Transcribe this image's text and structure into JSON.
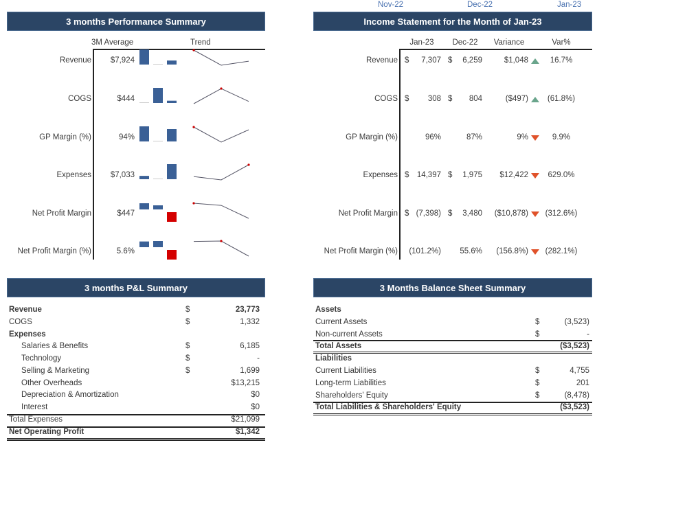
{
  "top_months": [
    "Nov-22",
    "Dec-22",
    "Jan-23"
  ],
  "performance": {
    "title": "3 months Performance Summary",
    "col_avg": "3M Average",
    "col_trend": "Trend",
    "bar_color": "#3a6096",
    "negative_color": "#d40000",
    "rows": [
      {
        "label": "Revenue",
        "avg": "$7,924",
        "trend": [
          10207,
          6259,
          7307
        ],
        "marker": 0
      },
      {
        "label": "COGS",
        "avg": "$444",
        "trend": [
          220,
          804,
          308
        ],
        "marker": 1
      },
      {
        "label": "GP Margin (%)",
        "avg": "94%",
        "trend": [
          98,
          87,
          96
        ],
        "marker": 0
      },
      {
        "label": "Expenses",
        "avg": "$7,033",
        "trend": [
          4727,
          1975,
          14397
        ],
        "marker": 2
      },
      {
        "label": "Net Profit Margin",
        "avg": "$447",
        "trend": [
          5260,
          3480,
          -7398
        ],
        "marker": 0
      },
      {
        "label": "Net Profit Margin (%)",
        "avg": "5.6%",
        "trend": [
          51.5,
          55.6,
          -101.2
        ],
        "marker": 1
      }
    ]
  },
  "income": {
    "title": "Income Statement for the Month of Jan-23",
    "columns": [
      "Jan-23",
      "Dec-22",
      "Variance",
      "Var%"
    ],
    "up_color": "#6aa58c",
    "down_color": "#e0522a",
    "rows": [
      {
        "label": "Revenue",
        "cur_sym": "$",
        "cur": "7,307",
        "prev_sym": "$",
        "prev": "6,259",
        "variance": "$1,048",
        "arrow": "up",
        "varpct": "16.7%"
      },
      {
        "label": "COGS",
        "cur_sym": "$",
        "cur": "308",
        "prev_sym": "$",
        "prev": "804",
        "variance": "($497)",
        "arrow": "up",
        "varpct": "(61.8%)"
      },
      {
        "label": "GP Margin (%)",
        "cur_sym": "",
        "cur": "96%",
        "prev_sym": "",
        "prev": "87%",
        "variance": "9%",
        "arrow": "down",
        "varpct": "9.9%"
      },
      {
        "label": "Expenses",
        "cur_sym": "$",
        "cur": "14,397",
        "prev_sym": "$",
        "prev": "1,975",
        "variance": "$12,422",
        "arrow": "down",
        "varpct": "629.0%"
      },
      {
        "label": "Net Profit Margin",
        "cur_sym": "$",
        "cur": "(7,398)",
        "prev_sym": "$",
        "prev": "3,480",
        "variance": "($10,878)",
        "arrow": "down",
        "varpct": "(312.6%)"
      },
      {
        "label": "Net Profit Margin (%)",
        "cur_sym": "",
        "cur": "(101.2%)",
        "prev_sym": "",
        "prev": "55.6%",
        "variance": "(156.8%)",
        "arrow": "down",
        "varpct": "(282.1%)"
      }
    ]
  },
  "pl": {
    "title": "3 months P&L Summary",
    "rows": [
      {
        "label": "Revenue",
        "sym": "$",
        "value": "23,773",
        "bold": true,
        "indent": false
      },
      {
        "label": "COGS",
        "sym": "$",
        "value": "1,332",
        "bold": false,
        "indent": false
      },
      {
        "label": "Expenses",
        "sym": "",
        "value": "",
        "bold": true,
        "indent": false
      },
      {
        "label": "Salaries & Benefits",
        "sym": "$",
        "value": "6,185",
        "bold": false,
        "indent": true
      },
      {
        "label": "Technology",
        "sym": "$",
        "value": "-",
        "bold": false,
        "indent": true
      },
      {
        "label": "Selling & Marketing",
        "sym": "$",
        "value": "1,699",
        "bold": false,
        "indent": true
      },
      {
        "label": "Other Overheads",
        "sym": "",
        "value": "$13,215",
        "bold": false,
        "indent": true
      },
      {
        "label": "Depreciation & Amortization",
        "sym": "",
        "value": "$0",
        "bold": false,
        "indent": true
      },
      {
        "label": "Interest",
        "sym": "",
        "value": "$0",
        "bold": false,
        "indent": true
      },
      {
        "label": "Total Expenses",
        "sym": "",
        "value": "$21,099",
        "bold": false,
        "indent": false
      },
      {
        "label": "Net Operating Profit",
        "sym": "",
        "value": "$1,342",
        "bold": true,
        "indent": false
      }
    ]
  },
  "balance": {
    "title": "3 Months Balance Sheet Summary",
    "rows": [
      {
        "label": "Assets",
        "sym": "",
        "value": "",
        "bold": true
      },
      {
        "label": "Current Assets",
        "sym": "$",
        "value": "(3,523)",
        "bold": false
      },
      {
        "label": "Non-current Assets",
        "sym": "$",
        "value": "-",
        "bold": false
      },
      {
        "label": "Total Assets",
        "sym": "",
        "value": "($3,523)",
        "bold": true
      },
      {
        "label": "Liabilities",
        "sym": "",
        "value": "",
        "bold": true
      },
      {
        "label": "Current Liabilities",
        "sym": "$",
        "value": "4,755",
        "bold": false
      },
      {
        "label": "Long-term Liabilities",
        "sym": "$",
        "value": "201",
        "bold": false
      },
      {
        "label": "Shareholders' Equity",
        "sym": "$",
        "value": "(8,478)",
        "bold": false
      },
      {
        "label": "Total Liabilities & Shareholders' Equity",
        "sym": "",
        "value": "($3,523)",
        "bold": true
      }
    ]
  }
}
